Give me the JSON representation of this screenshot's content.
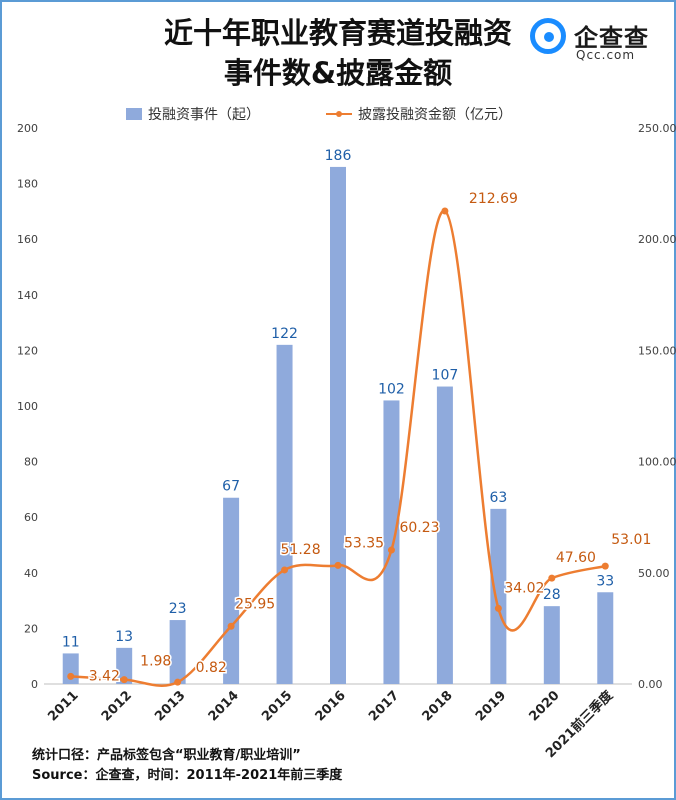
{
  "header": {
    "title_line1": "近十年职业教育赛道投融资",
    "title_line2": "事件数&披露金额"
  },
  "logo": {
    "name": "企查查",
    "domain": "Qcc.com",
    "color": "#1a8cff"
  },
  "footer": {
    "note1": "统计口径：产品标签包含“职业教育/职业培训”",
    "note2": "Source：企查查，时间：2011年-2021年前三季度"
  },
  "chart_data": {
    "type": "bar+line",
    "categories": [
      "2011",
      "2012",
      "2013",
      "2014",
      "2015",
      "2016",
      "2017",
      "2018",
      "2019",
      "2020",
      "2021前三季度"
    ],
    "series": [
      {
        "name": "投融资事件（起）",
        "type": "bar",
        "axis": "left",
        "color": "#8faadc",
        "values": [
          11,
          13,
          23,
          67,
          122,
          186,
          102,
          107,
          63,
          28,
          33
        ],
        "labels": [
          "11",
          "13",
          "23",
          "67",
          "122",
          "186",
          "102",
          "107",
          "63",
          "28",
          "33"
        ]
      },
      {
        "name": "披露投融资金额（亿元）",
        "type": "line",
        "axis": "right",
        "color": "#ed7d31",
        "smooth": true,
        "values": [
          3.42,
          1.98,
          0.82,
          25.95,
          51.28,
          53.35,
          60.23,
          212.69,
          34.02,
          47.6,
          53.01
        ],
        "labels": [
          "3.42",
          "1.98",
          "0.82",
          "25.95",
          "51.28",
          "53.35",
          "60.23",
          "212.69",
          "34.02",
          "47.60",
          "53.01"
        ]
      }
    ],
    "y_left": {
      "min": 0,
      "max": 200,
      "ticks": [
        "0",
        "20",
        "40",
        "60",
        "80",
        "100",
        "120",
        "140",
        "160",
        "180",
        "200"
      ]
    },
    "y_right": {
      "min": 0,
      "max": 250,
      "ticks": [
        "0.00",
        "50.00",
        "100.00",
        "150.00",
        "200.00",
        "250.00"
      ]
    },
    "legend_position": "top",
    "grid": false
  }
}
